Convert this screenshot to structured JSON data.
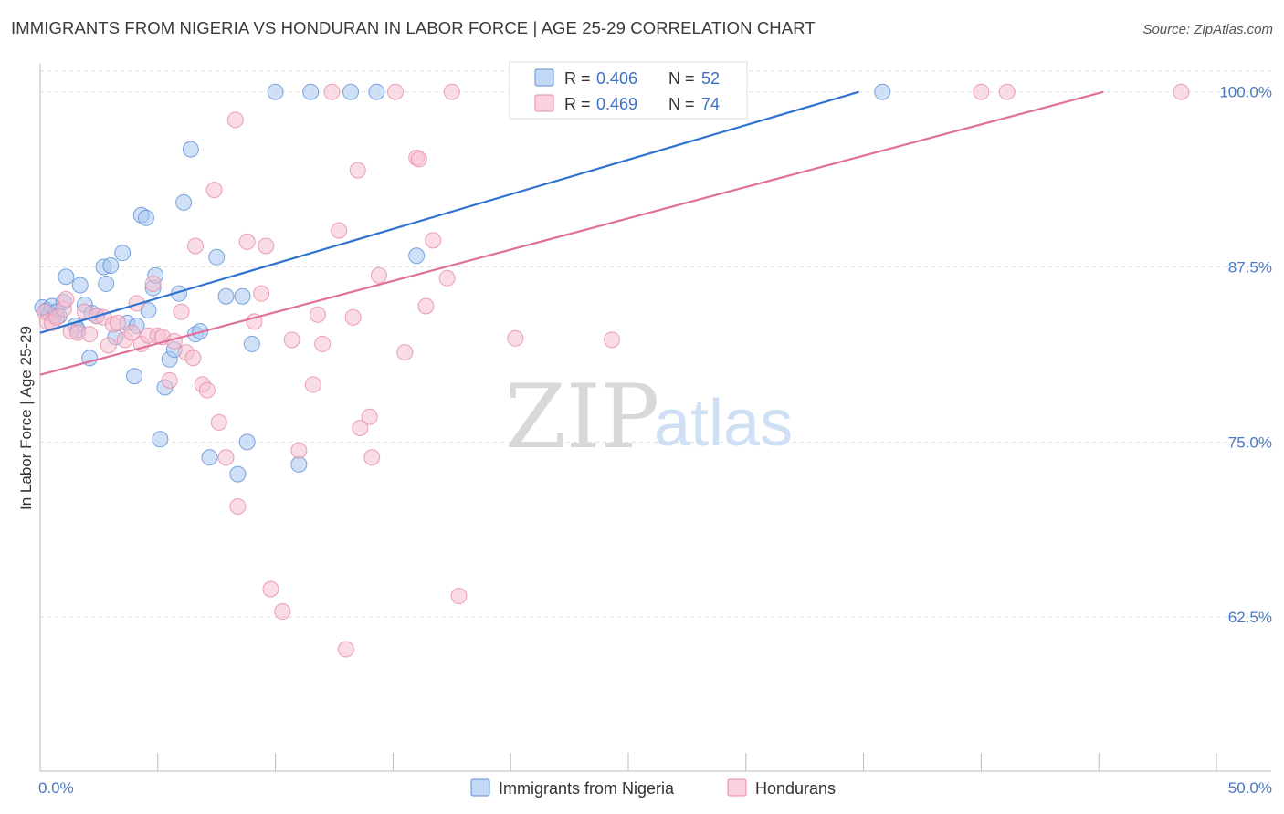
{
  "title": "IMMIGRANTS FROM NIGERIA VS HONDURAN IN LABOR FORCE | AGE 25-29 CORRELATION CHART",
  "source": "Source: ZipAtlas.com",
  "watermark": {
    "zip": "ZIP",
    "atlas": "atlas"
  },
  "colors": {
    "blue_fill": "#a9c7f0",
    "blue_stroke": "#5b8fd6",
    "blue_line": "#2f72cf",
    "pink_fill": "#f6bfd0",
    "pink_stroke": "#e68aa8",
    "pink_line": "#e0709a",
    "tick_text": "#4a78c2",
    "grid": "#e0e0e0"
  },
  "chart_data": {
    "type": "scatter",
    "title": "IMMIGRANTS FROM NIGERIA VS HONDURAN IN LABOR FORCE | AGE 25-29 CORRELATION CHART",
    "xlabel": "",
    "ylabel": "In Labor Force | Age 25-29",
    "xlim": [
      0,
      50
    ],
    "ylim": [
      51.5,
      102
    ],
    "x_tick_labels": [
      "0.0%",
      "50.0%"
    ],
    "y_ticks": [
      62.5,
      75.0,
      87.5,
      100.0
    ],
    "y_tick_labels": [
      "62.5%",
      "75.0%",
      "87.5%",
      "100.0%"
    ],
    "grid": true,
    "legend": {
      "placement": "top-center",
      "entries": [
        {
          "r_label": "R =",
          "r_value": "0.406",
          "n_label": "N =",
          "n_value": "52"
        },
        {
          "r_label": "R =",
          "r_value": "0.469",
          "n_label": "N =",
          "n_value": "74"
        }
      ]
    },
    "bottom_legend": [
      "Immigrants from Nigeria",
      "Hondurans"
    ],
    "series": [
      {
        "name": "Immigrants from Nigeria",
        "trend": {
          "x": [
            0,
            34.8
          ],
          "y": [
            82.8,
            100.0
          ]
        },
        "points": [
          [
            0.1,
            84.6
          ],
          [
            0.3,
            84.4
          ],
          [
            0.4,
            84.2
          ],
          [
            0.5,
            84.7
          ],
          [
            0.6,
            84.0
          ],
          [
            0.7,
            84.3
          ],
          [
            0.8,
            84.0
          ],
          [
            1.0,
            85.0
          ],
          [
            1.1,
            86.8
          ],
          [
            1.5,
            83.3
          ],
          [
            1.6,
            83.0
          ],
          [
            1.7,
            86.2
          ],
          [
            1.9,
            84.8
          ],
          [
            2.1,
            81.0
          ],
          [
            2.2,
            84.2
          ],
          [
            2.4,
            84.0
          ],
          [
            2.7,
            87.5
          ],
          [
            2.8,
            86.3
          ],
          [
            3.0,
            87.6
          ],
          [
            3.2,
            82.5
          ],
          [
            3.5,
            88.5
          ],
          [
            3.7,
            83.5
          ],
          [
            4.0,
            79.7
          ],
          [
            4.1,
            83.3
          ],
          [
            4.3,
            91.2
          ],
          [
            4.5,
            91.0
          ],
          [
            4.6,
            84.4
          ],
          [
            4.8,
            86.0
          ],
          [
            4.9,
            86.9
          ],
          [
            5.1,
            75.2
          ],
          [
            5.3,
            78.9
          ],
          [
            5.5,
            80.9
          ],
          [
            5.7,
            81.6
          ],
          [
            5.9,
            85.6
          ],
          [
            6.1,
            92.1
          ],
          [
            6.4,
            95.9
          ],
          [
            6.6,
            82.7
          ],
          [
            6.8,
            82.9
          ],
          [
            7.2,
            73.9
          ],
          [
            7.5,
            88.2
          ],
          [
            7.9,
            85.4
          ],
          [
            8.4,
            72.7
          ],
          [
            8.6,
            85.4
          ],
          [
            8.8,
            75.0
          ],
          [
            9.0,
            82.0
          ],
          [
            10.0,
            100.0
          ],
          [
            11.0,
            73.4
          ],
          [
            11.5,
            100.0
          ],
          [
            13.2,
            100.0
          ],
          [
            14.3,
            100.0
          ],
          [
            16.0,
            88.3
          ],
          [
            35.8,
            100.0
          ]
        ]
      },
      {
        "name": "Hondurans",
        "trend": {
          "x": [
            0,
            45.2
          ],
          "y": [
            79.8,
            100.0
          ]
        },
        "points": [
          [
            0.2,
            84.3
          ],
          [
            0.3,
            83.6
          ],
          [
            0.5,
            83.5
          ],
          [
            0.7,
            83.9
          ],
          [
            1.0,
            84.5
          ],
          [
            1.1,
            85.2
          ],
          [
            1.3,
            82.9
          ],
          [
            1.6,
            82.8
          ],
          [
            1.9,
            84.3
          ],
          [
            2.1,
            82.7
          ],
          [
            2.4,
            84.0
          ],
          [
            2.7,
            83.9
          ],
          [
            2.9,
            81.9
          ],
          [
            3.1,
            83.4
          ],
          [
            3.3,
            83.5
          ],
          [
            3.6,
            82.3
          ],
          [
            3.9,
            82.8
          ],
          [
            4.1,
            84.9
          ],
          [
            4.3,
            82.0
          ],
          [
            4.6,
            82.6
          ],
          [
            4.8,
            86.3
          ],
          [
            5.0,
            82.6
          ],
          [
            5.2,
            82.5
          ],
          [
            5.5,
            79.4
          ],
          [
            5.7,
            82.2
          ],
          [
            6.0,
            84.3
          ],
          [
            6.2,
            81.4
          ],
          [
            6.5,
            81.0
          ],
          [
            6.6,
            89.0
          ],
          [
            6.9,
            79.1
          ],
          [
            7.1,
            78.7
          ],
          [
            7.4,
            93.0
          ],
          [
            7.6,
            76.4
          ],
          [
            7.9,
            73.9
          ],
          [
            8.3,
            98.0
          ],
          [
            8.4,
            70.4
          ],
          [
            8.8,
            89.3
          ],
          [
            9.1,
            83.6
          ],
          [
            9.4,
            85.6
          ],
          [
            9.6,
            89.0
          ],
          [
            9.8,
            64.5
          ],
          [
            10.3,
            62.9
          ],
          [
            10.7,
            82.3
          ],
          [
            11.0,
            74.4
          ],
          [
            11.6,
            79.1
          ],
          [
            11.8,
            84.1
          ],
          [
            12.0,
            82.0
          ],
          [
            12.4,
            100.0
          ],
          [
            12.7,
            90.1
          ],
          [
            13.0,
            60.2
          ],
          [
            13.3,
            83.9
          ],
          [
            13.5,
            94.4
          ],
          [
            13.6,
            76.0
          ],
          [
            14.0,
            76.8
          ],
          [
            14.1,
            73.9
          ],
          [
            14.4,
            86.9
          ],
          [
            15.1,
            100.0
          ],
          [
            15.5,
            81.4
          ],
          [
            16.0,
            95.3
          ],
          [
            16.1,
            95.2
          ],
          [
            16.4,
            84.7
          ],
          [
            16.7,
            89.4
          ],
          [
            17.3,
            86.7
          ],
          [
            17.5,
            100.0
          ],
          [
            17.8,
            64.0
          ],
          [
            20.2,
            82.4
          ],
          [
            20.4,
            100.0
          ],
          [
            23.1,
            100.0
          ],
          [
            24.3,
            82.3
          ],
          [
            25.2,
            100.0
          ],
          [
            28.4,
            100.0
          ],
          [
            40.0,
            100.0
          ],
          [
            41.1,
            100.0
          ],
          [
            48.5,
            100.0
          ]
        ]
      }
    ]
  }
}
